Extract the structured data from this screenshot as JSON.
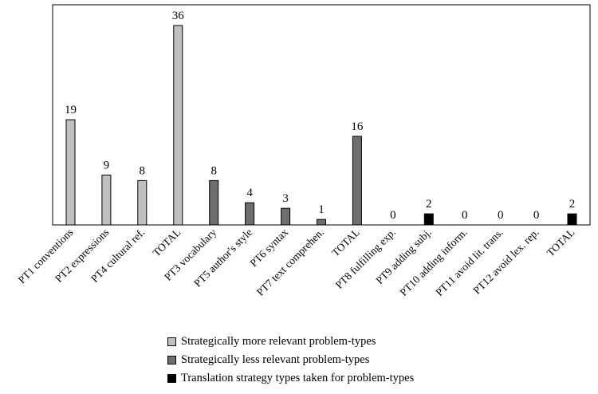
{
  "chart_data": {
    "type": "bar",
    "title": "",
    "xlabel": "",
    "ylabel": "",
    "ylim": [
      0,
      36
    ],
    "grid": false,
    "legend_position": "bottom",
    "categories": [
      "PT1 conventions",
      "PT2 expressions",
      "PT4 cultural ref.",
      "TOTAL",
      "PT3 vocabulary",
      "PT5 author's style",
      "PT6 syntax",
      "PT7 text comprehen.",
      "TOTAL",
      "PT8 fulfilling exp.",
      "PT9 adding subj.",
      "PT10 adding inform.",
      "PT11 avoid lit. trans.",
      "PT12 avoid lex. rep.",
      "TOTAL"
    ],
    "values": [
      19,
      9,
      8,
      36,
      8,
      4,
      3,
      1,
      16,
      0,
      2,
      0,
      0,
      0,
      2
    ],
    "value_labels": [
      "19",
      "9",
      "8",
      "36",
      "8",
      "4",
      "3",
      "1",
      "16",
      "0",
      "2",
      "0",
      "0",
      "0",
      "2"
    ],
    "groups": [
      0,
      0,
      0,
      0,
      1,
      1,
      1,
      1,
      1,
      2,
      2,
      2,
      2,
      2,
      2
    ],
    "series": [
      {
        "name": "Strategically more relevant problem-types",
        "color": "#c0c0c0"
      },
      {
        "name": "Strategically less relevant problem-types",
        "color": "#6e6e6e"
      },
      {
        "name": "Translation strategy types taken for problem-types",
        "color": "#000000"
      }
    ]
  }
}
